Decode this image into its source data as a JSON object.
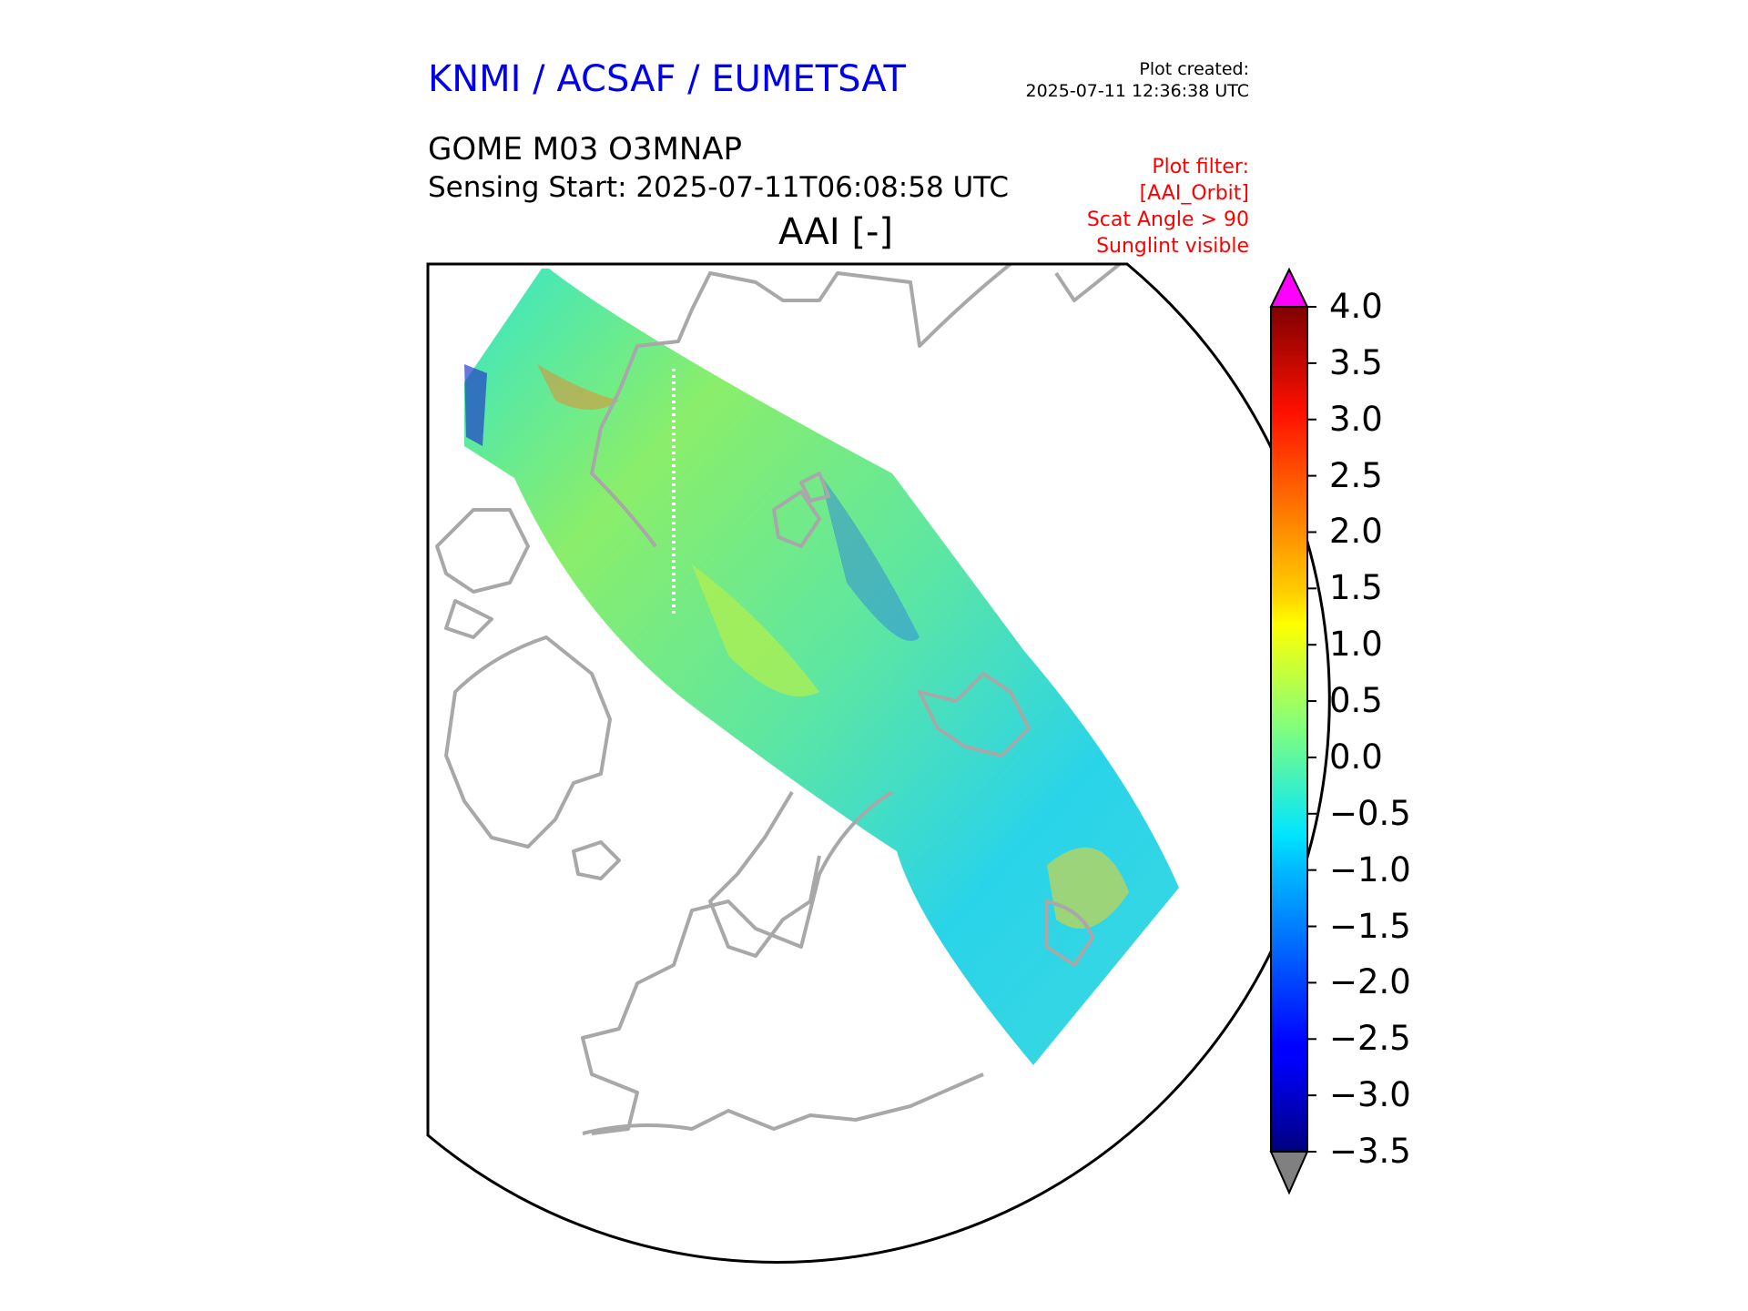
{
  "header": {
    "organization": "KNMI / ACSAF / EUMETSAT",
    "plot_created_label": "Plot created:",
    "plot_created_time": "2025-07-11 12:36:38 UTC",
    "product": "GOME M03 O3MNAP",
    "sensing_start": "Sensing Start: 2025-07-11T06:08:58 UTC",
    "variable_title": "AAI [-]"
  },
  "plot_filter": {
    "line1": "Plot filter:",
    "line2": "[AAI_Orbit]",
    "line3": "Scat Angle > 90",
    "line4": "Sunglint visible"
  },
  "colorbar": {
    "min": -3.5,
    "max": 4.0,
    "ticks": [
      "4.0",
      "3.5",
      "3.0",
      "2.5",
      "2.0",
      "1.5",
      "1.0",
      "0.5",
      "0.0",
      "−0.5",
      "−1.0",
      "−1.5",
      "−2.0",
      "−2.5",
      "−3.0",
      "−3.5"
    ],
    "over_color": "#ff00ff",
    "under_color": "#808080",
    "colormap": "jet"
  },
  "colors": {
    "title_blue": "#0000ee",
    "filter_red": "#ff0000",
    "coastline": "#a8a8a8"
  }
}
